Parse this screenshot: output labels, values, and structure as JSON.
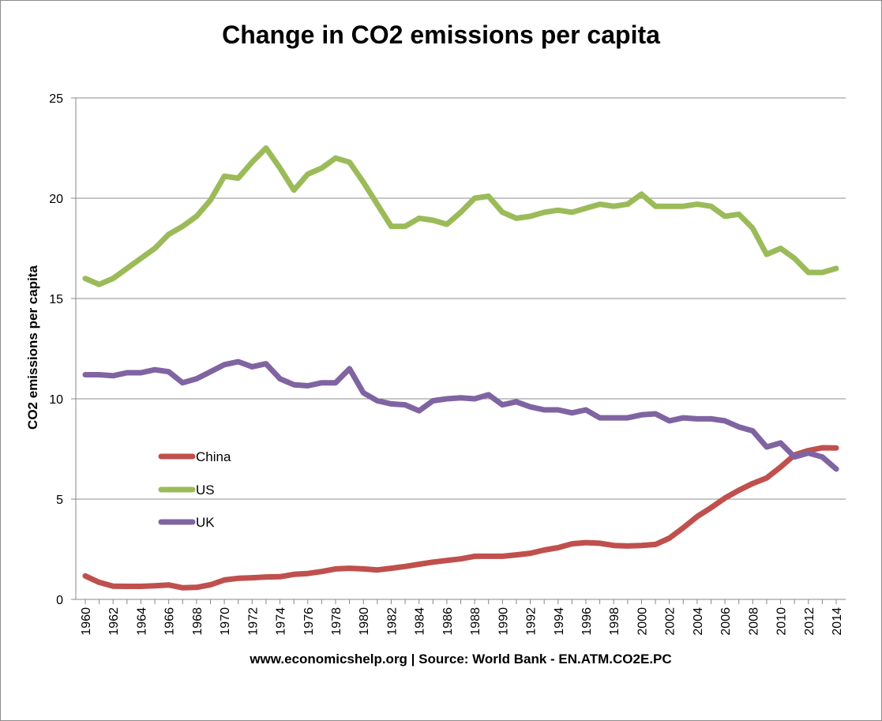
{
  "chart_data": {
    "type": "line",
    "title": "Change in CO2 emissions per capita",
    "ylabel": "CO2 emissions per capita",
    "xlabel": "www.economicshelp.org | Source: World Bank - EN.ATM.CO2E.PC",
    "ylim": [
      0,
      25
    ],
    "yticks": [
      "0",
      "5",
      "10",
      "15",
      "20",
      "25"
    ],
    "grid": true,
    "legend_position": "left-middle",
    "x": [
      1960,
      1961,
      1962,
      1963,
      1964,
      1965,
      1966,
      1967,
      1968,
      1969,
      1970,
      1971,
      1972,
      1973,
      1974,
      1975,
      1976,
      1977,
      1978,
      1979,
      1980,
      1981,
      1982,
      1983,
      1984,
      1985,
      1986,
      1987,
      1988,
      1989,
      1990,
      1991,
      1992,
      1993,
      1994,
      1995,
      1996,
      1997,
      1998,
      1999,
      2000,
      2001,
      2002,
      2003,
      2004,
      2005,
      2006,
      2007,
      2008,
      2009,
      2010,
      2011,
      2012,
      2013,
      2014
    ],
    "xtick_labels": [
      "1960",
      "1962",
      "1964",
      "1966",
      "1968",
      "1970",
      "1972",
      "1974",
      "1976",
      "1978",
      "1980",
      "1982",
      "1984",
      "1986",
      "1988",
      "1990",
      "1992",
      "1994",
      "1996",
      "1998",
      "2000",
      "2002",
      "2004",
      "2006",
      "2008",
      "2010",
      "2012",
      "2014"
    ],
    "series": [
      {
        "name": "China",
        "color": "#c0504d",
        "values": [
          1.17,
          0.85,
          0.66,
          0.65,
          0.65,
          0.68,
          0.72,
          0.58,
          0.6,
          0.73,
          0.97,
          1.05,
          1.08,
          1.12,
          1.13,
          1.25,
          1.29,
          1.39,
          1.52,
          1.55,
          1.52,
          1.47,
          1.55,
          1.64,
          1.75,
          1.86,
          1.94,
          2.02,
          2.15,
          2.15,
          2.15,
          2.22,
          2.3,
          2.46,
          2.58,
          2.77,
          2.83,
          2.8,
          2.69,
          2.66,
          2.69,
          2.74,
          3.05,
          3.57,
          4.13,
          4.57,
          5.05,
          5.44,
          5.78,
          6.05,
          6.6,
          7.2,
          7.42,
          7.56,
          7.55
        ]
      },
      {
        "name": "US",
        "color": "#9bbb59",
        "values": [
          16.0,
          15.7,
          16.0,
          16.5,
          17.0,
          17.5,
          18.2,
          18.6,
          19.1,
          19.9,
          21.1,
          21.0,
          21.8,
          22.5,
          21.5,
          20.4,
          21.2,
          21.5,
          22.0,
          21.8,
          20.8,
          19.7,
          18.6,
          18.6,
          19.0,
          18.9,
          18.7,
          19.3,
          20.0,
          20.1,
          19.3,
          19.0,
          19.1,
          19.3,
          19.4,
          19.3,
          19.5,
          19.7,
          19.6,
          19.7,
          20.2,
          19.6,
          19.6,
          19.6,
          19.7,
          19.6,
          19.1,
          19.2,
          18.5,
          17.2,
          17.5,
          17.0,
          16.3,
          16.3,
          16.5
        ]
      },
      {
        "name": "UK",
        "color": "#8064a2",
        "values": [
          11.2,
          11.2,
          11.15,
          11.3,
          11.3,
          11.45,
          11.35,
          10.8,
          11.0,
          11.35,
          11.7,
          11.85,
          11.6,
          11.75,
          11.0,
          10.7,
          10.65,
          10.8,
          10.8,
          11.5,
          10.3,
          9.9,
          9.75,
          9.7,
          9.4,
          9.9,
          10.0,
          10.05,
          10.0,
          10.2,
          9.7,
          9.85,
          9.6,
          9.45,
          9.45,
          9.3,
          9.45,
          9.05,
          9.05,
          9.05,
          9.2,
          9.25,
          8.9,
          9.05,
          9.0,
          9.0,
          8.9,
          8.6,
          8.4,
          7.6,
          7.8,
          7.1,
          7.3,
          7.1,
          6.5
        ]
      }
    ]
  }
}
